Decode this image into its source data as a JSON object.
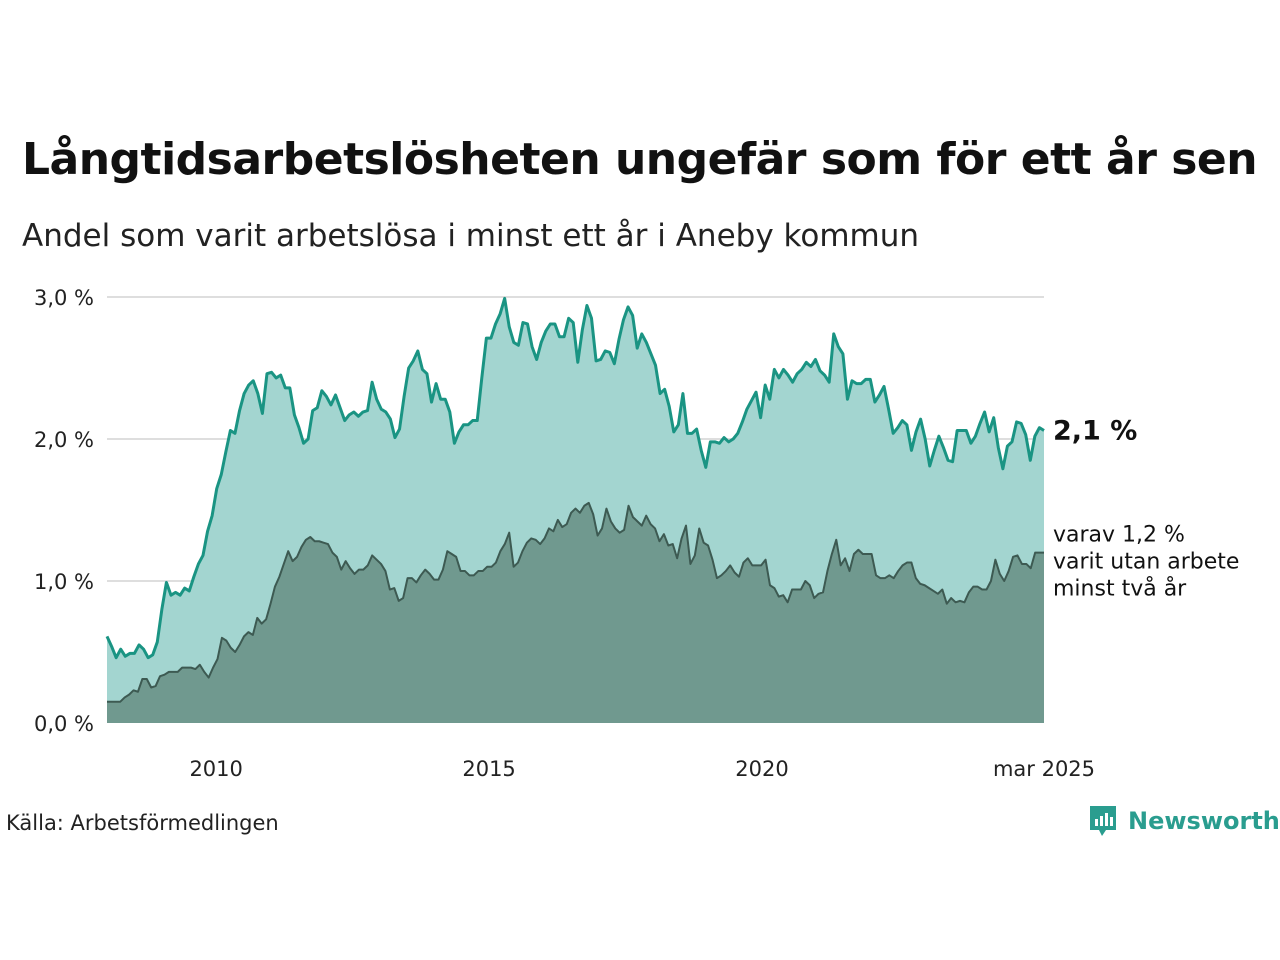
{
  "title": "Långtidsarbetslösheten ungefär som för ett år sen",
  "subtitle": "Andel som varit arbetslösa i minst ett år i Aneby kommun",
  "source": "Källa: Arbetsförmedlingen",
  "brand": {
    "name": "Newsworthy",
    "icon": "newsworthy-logo-icon",
    "color": "#2a9d8f"
  },
  "chart_data": {
    "type": "area",
    "x_start": "2008-01",
    "x_end": "2025-03",
    "x_ticks": [
      {
        "date": "2010-01",
        "label": "2010"
      },
      {
        "date": "2015-01",
        "label": "2015"
      },
      {
        "date": "2020-01",
        "label": "2020"
      },
      {
        "date": "2025-03",
        "label": "mar 2025"
      }
    ],
    "ylim": [
      0,
      3
    ],
    "y_ticks": [
      {
        "value": 0,
        "label": "0,0 %"
      },
      {
        "value": 1,
        "label": "1,0 %"
      },
      {
        "value": 2,
        "label": "2,0 %"
      },
      {
        "value": 3,
        "label": "3,0 %"
      }
    ],
    "grid": true,
    "end_label": "2,1 %",
    "annotation_lines": [
      "varav 1,2 %",
      "varit utan arbete",
      "minst två år"
    ],
    "series": [
      {
        "color": "#1a9483",
        "fill": "#a3d5d0",
        "monthly_step": 1,
        "values": [
          0.61,
          0.54,
          0.46,
          0.52,
          0.47,
          0.49,
          0.49,
          0.55,
          0.52,
          0.46,
          0.48,
          0.57,
          0.8,
          0.99,
          0.9,
          0.92,
          0.9,
          0.95,
          0.93,
          1.03,
          1.12,
          1.18,
          1.35,
          1.46,
          1.65,
          1.75,
          1.91,
          2.06,
          2.04,
          2.2,
          2.32,
          2.38,
          2.41,
          2.32,
          2.18,
          2.46,
          2.47,
          2.43,
          2.45,
          2.36,
          2.36,
          2.17,
          2.08,
          1.97,
          2.0,
          2.2,
          2.22,
          2.34,
          2.3,
          2.24,
          2.31,
          2.22,
          2.13,
          2.17,
          2.19,
          2.16,
          2.19,
          2.2,
          2.4,
          2.28,
          2.21,
          2.19,
          2.14,
          2.01,
          2.07,
          2.3,
          2.5,
          2.55,
          2.62,
          2.49,
          2.46,
          2.26,
          2.39,
          2.28,
          2.28,
          2.19,
          1.97,
          2.05,
          2.1,
          2.1,
          2.13,
          2.13,
          2.43,
          2.71,
          2.71,
          2.81,
          2.88,
          2.99,
          2.79,
          2.68,
          2.66,
          2.82,
          2.81,
          2.65,
          2.56,
          2.68,
          2.76,
          2.81,
          2.81,
          2.72,
          2.72,
          2.85,
          2.82,
          2.54,
          2.77,
          2.94,
          2.85,
          2.55,
          2.56,
          2.62,
          2.61,
          2.53,
          2.7,
          2.84,
          2.93,
          2.87,
          2.64,
          2.74,
          2.68,
          2.6,
          2.52,
          2.32,
          2.35,
          2.23,
          2.05,
          2.1,
          2.32,
          2.04,
          2.04,
          2.07,
          1.92,
          1.8,
          1.98,
          1.98,
          1.97,
          2.01,
          1.98,
          2.0,
          2.04,
          2.12,
          2.21,
          2.27,
          2.33,
          2.15,
          2.38,
          2.28,
          2.49,
          2.43,
          2.49,
          2.45,
          2.4,
          2.46,
          2.49,
          2.54,
          2.51,
          2.56,
          2.48,
          2.45,
          2.4,
          2.74,
          2.65,
          2.6,
          2.28,
          2.41,
          2.39,
          2.39,
          2.42,
          2.42,
          2.26,
          2.31,
          2.37,
          2.21,
          2.04,
          2.08,
          2.13,
          2.1,
          1.92,
          2.05,
          2.14,
          2.0,
          1.81,
          1.92,
          2.02,
          1.94,
          1.85,
          1.84,
          2.06,
          2.06,
          2.06,
          1.97,
          2.02,
          2.11,
          2.19,
          2.05,
          2.15,
          1.94,
          1.79,
          1.95,
          1.98,
          2.12,
          2.11,
          2.03,
          1.85,
          2.02,
          2.08,
          2.06
        ]
      },
      {
        "color": "#3d5a52",
        "fill": "#70998f",
        "monthly_step": 1,
        "values": [
          0.15,
          0.15,
          0.15,
          0.15,
          0.18,
          0.2,
          0.23,
          0.22,
          0.31,
          0.31,
          0.25,
          0.26,
          0.33,
          0.34,
          0.36,
          0.36,
          0.36,
          0.39,
          0.39,
          0.39,
          0.38,
          0.41,
          0.36,
          0.32,
          0.39,
          0.45,
          0.6,
          0.58,
          0.53,
          0.5,
          0.55,
          0.61,
          0.64,
          0.62,
          0.74,
          0.7,
          0.73,
          0.84,
          0.96,
          1.03,
          1.12,
          1.21,
          1.14,
          1.17,
          1.24,
          1.29,
          1.31,
          1.28,
          1.28,
          1.27,
          1.26,
          1.2,
          1.17,
          1.08,
          1.14,
          1.09,
          1.05,
          1.08,
          1.08,
          1.11,
          1.18,
          1.15,
          1.12,
          1.07,
          0.94,
          0.95,
          0.86,
          0.88,
          1.02,
          1.02,
          0.99,
          1.04,
          1.08,
          1.05,
          1.01,
          1.01,
          1.08,
          1.21,
          1.19,
          1.17,
          1.07,
          1.07,
          1.04,
          1.04,
          1.07,
          1.07,
          1.1,
          1.1,
          1.13,
          1.21,
          1.26,
          1.34,
          1.1,
          1.13,
          1.21,
          1.27,
          1.3,
          1.29,
          1.26,
          1.3,
          1.37,
          1.35,
          1.43,
          1.38,
          1.4,
          1.48,
          1.51,
          1.48,
          1.53,
          1.55,
          1.47,
          1.32,
          1.37,
          1.51,
          1.42,
          1.37,
          1.34,
          1.36,
          1.53,
          1.45,
          1.42,
          1.39,
          1.46,
          1.4,
          1.37,
          1.28,
          1.33,
          1.25,
          1.26,
          1.16,
          1.3,
          1.39,
          1.12,
          1.18,
          1.37,
          1.27,
          1.25,
          1.15,
          1.02,
          1.04,
          1.07,
          1.11,
          1.06,
          1.03,
          1.13,
          1.16,
          1.11,
          1.11,
          1.11,
          1.15,
          0.97,
          0.95,
          0.89,
          0.9,
          0.85,
          0.94,
          0.94,
          0.94,
          1.0,
          0.97,
          0.88,
          0.91,
          0.92,
          1.07,
          1.19,
          1.29,
          1.11,
          1.16,
          1.07,
          1.19,
          1.22,
          1.19,
          1.19,
          1.19,
          1.04,
          1.02,
          1.02,
          1.04,
          1.02,
          1.07,
          1.11,
          1.13,
          1.13,
          1.02,
          0.98,
          0.97,
          0.95,
          0.93,
          0.91,
          0.94,
          0.84,
          0.88,
          0.85,
          0.86,
          0.85,
          0.92,
          0.96,
          0.96,
          0.94,
          0.94,
          1.0,
          1.15,
          1.05,
          1.0,
          1.07,
          1.17,
          1.18,
          1.12,
          1.12,
          1.09,
          1.2,
          1.2,
          1.2
        ]
      }
    ]
  }
}
